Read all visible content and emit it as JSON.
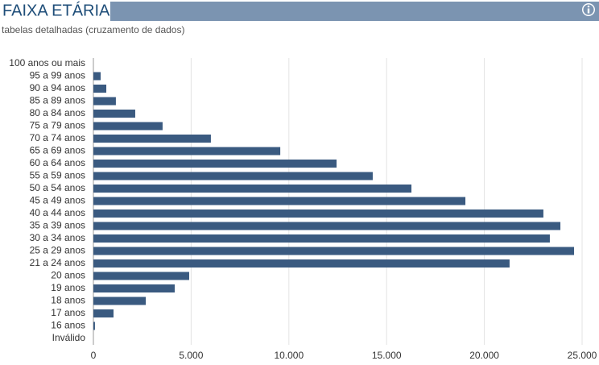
{
  "header": {
    "title": "FAIXA ETÁRIA",
    "subtitle": "tabelas detalhadas (cruzamento de dados)"
  },
  "chart_data": {
    "type": "bar",
    "orientation": "horizontal",
    "color": "#3a5a80",
    "grid": true,
    "categories": [
      "100 anos ou mais",
      "95 a 99 anos",
      "90 a 94 anos",
      "85 a 89 anos",
      "80 a 84 anos",
      "75 a 79 anos",
      "70 a 74 anos",
      "65 a 69 anos",
      "60 a 64 anos",
      "55 a 59 anos",
      "50 a 54 anos",
      "45 a 49 anos",
      "40 a 44 anos",
      "35 a 39 anos",
      "30 a 34 anos",
      "25 a 29 anos",
      "21 a 24 anos",
      "20 anos",
      "19 anos",
      "18 anos",
      "17 anos",
      "16 anos",
      "Inválido"
    ],
    "values": [
      0,
      370,
      660,
      1150,
      2140,
      3540,
      6010,
      9560,
      12440,
      14290,
      16270,
      19030,
      23020,
      23890,
      23350,
      24590,
      21290,
      4900,
      4160,
      2680,
      1030,
      80,
      0
    ],
    "xlim": [
      0,
      25000
    ],
    "xticks": [
      0,
      {
        "value": 5000,
        "label": "5.000"
      },
      {
        "value": 10000,
        "label": "10.000"
      },
      {
        "value": 15000,
        "label": "15.000"
      },
      {
        "value": 20000,
        "label": "20.000"
      },
      {
        "value": 25000,
        "label": "25.000"
      }
    ]
  }
}
